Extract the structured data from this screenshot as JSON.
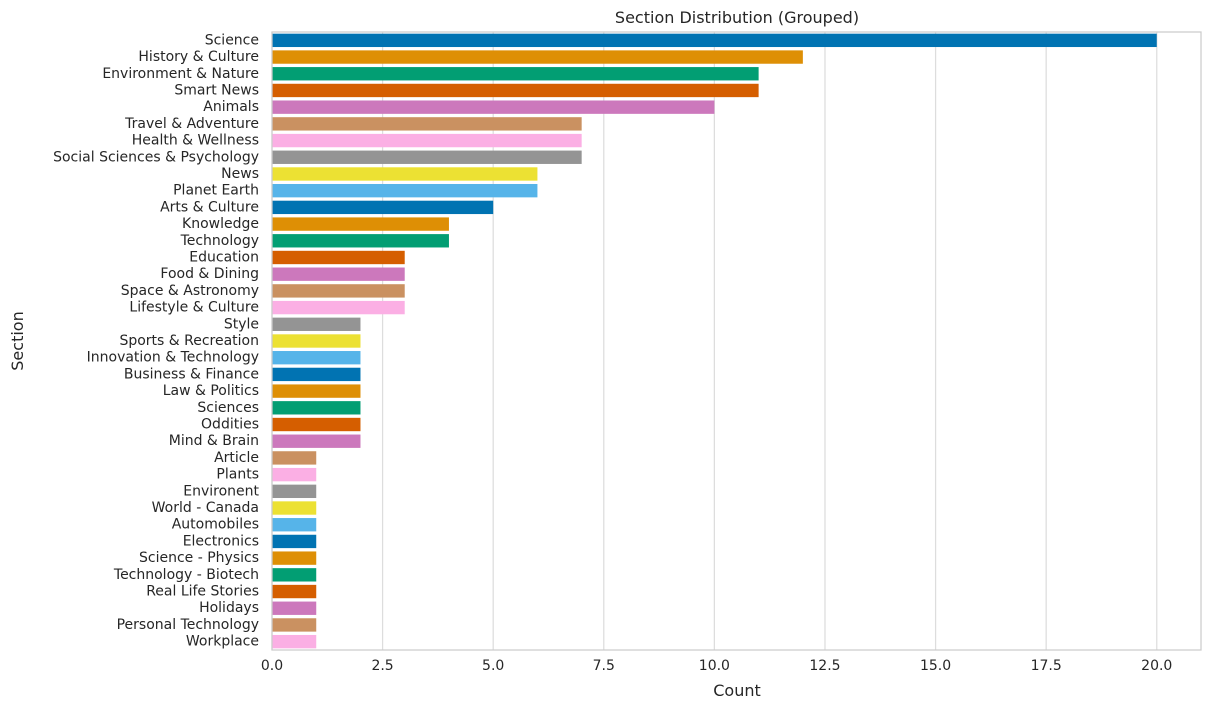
{
  "chart_data": {
    "type": "bar",
    "orientation": "horizontal",
    "title": "Section Distribution (Grouped)",
    "xlabel": "Count",
    "ylabel": "Section",
    "xlim": [
      0,
      21
    ],
    "xticks": [
      "0.0",
      "2.5",
      "5.0",
      "7.5",
      "10.0",
      "12.5",
      "15.0",
      "17.5",
      "20.0"
    ],
    "xtick_values": [
      0,
      2.5,
      5,
      7.5,
      10,
      12.5,
      15,
      17.5,
      20
    ],
    "grid": "vertical",
    "palette": [
      "#0173b2",
      "#de8f05",
      "#029e73",
      "#d55e00",
      "#cc78bc",
      "#ca9161",
      "#fbafe4",
      "#949494",
      "#ece133",
      "#56b4e9"
    ],
    "categories": [
      "Science",
      "History & Culture",
      "Environment & Nature",
      "Smart News",
      "Animals",
      "Travel & Adventure",
      "Health & Wellness",
      "Social Sciences & Psychology",
      "News",
      "Planet Earth",
      "Arts & Culture",
      "Knowledge",
      "Technology",
      "Education",
      "Food & Dining",
      "Space & Astronomy",
      "Lifestyle & Culture",
      "Style",
      "Sports & Recreation",
      "Innovation & Technology",
      "Business & Finance",
      "Law & Politics",
      "Sciences",
      "Oddities",
      "Mind & Brain",
      "Article",
      "Plants",
      "Environent",
      "World - Canada",
      "Automobiles",
      "Electronics",
      "Science - Physics",
      "Technology - Biotech",
      "Real Life Stories",
      "Holidays",
      "Personal Technology",
      "Workplace"
    ],
    "values": [
      20,
      12,
      11,
      11,
      10,
      7,
      7,
      7,
      6,
      6,
      5,
      4,
      4,
      3,
      3,
      3,
      3,
      2,
      2,
      2,
      2,
      2,
      2,
      2,
      2,
      1,
      1,
      1,
      1,
      1,
      1,
      1,
      1,
      1,
      1,
      1,
      1
    ]
  }
}
